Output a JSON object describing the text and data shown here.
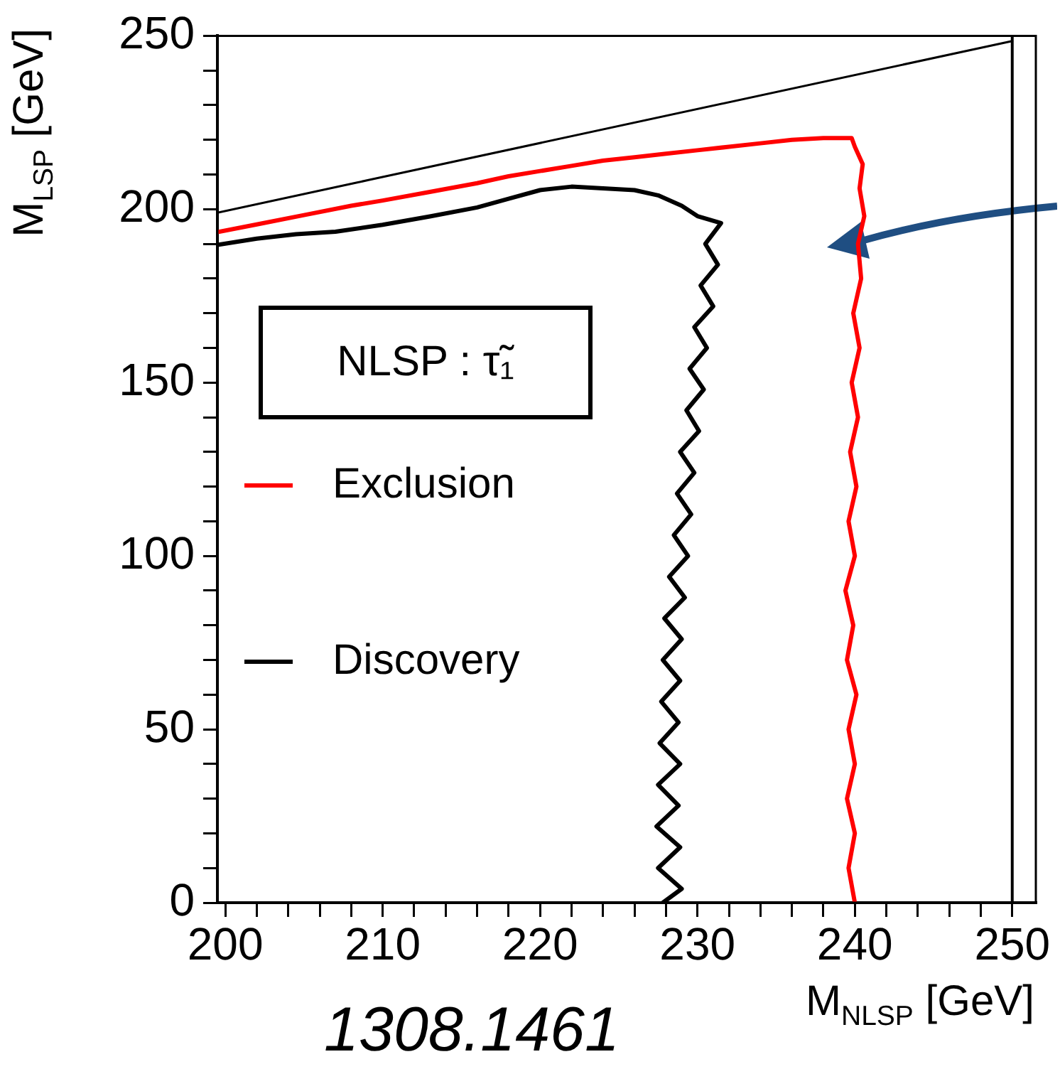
{
  "chart_data": {
    "type": "line",
    "xlabel": "M$_{NLSP}$ [GeV]",
    "ylabel": "M$_{LSP}$ [GeV]",
    "legend": "left",
    "grid": false,
    "marker": "none",
    "line_style": "solid",
    "xlim": [
      199.5,
      251.5
    ],
    "ylim": [
      0,
      250
    ],
    "xticks": [
      200,
      {
        "value": 202,
        "label": null
      },
      {
        "value": 204,
        "label": null
      },
      {
        "value": 206,
        "label": null
      },
      {
        "value": 208,
        "label": null
      },
      210,
      {
        "value": 212,
        "label": null
      },
      {
        "value": 214,
        "label": null
      },
      {
        "value": 216,
        "label": null
      },
      {
        "value": 218,
        "label": null
      },
      220,
      {
        "value": 222,
        "label": null
      },
      {
        "value": 224,
        "label": null
      },
      {
        "value": 226,
        "label": null
      },
      {
        "value": 228,
        "label": null
      },
      230,
      {
        "value": 232,
        "label": null
      },
      {
        "value": 234,
        "label": null
      },
      {
        "value": 236,
        "label": null
      },
      {
        "value": 238,
        "label": null
      },
      240,
      {
        "value": 242,
        "label": null
      },
      {
        "value": 244,
        "label": null
      },
      {
        "value": 246,
        "label": null
      },
      {
        "value": 248,
        "label": null
      },
      250
    ],
    "yticks": [
      0,
      {
        "value": 10,
        "label": null
      },
      {
        "value": 20,
        "label": null
      },
      {
        "value": 30,
        "label": null
      },
      {
        "value": 40,
        "label": null
      },
      50,
      {
        "value": 60,
        "label": null
      },
      {
        "value": 70,
        "label": null
      },
      {
        "value": 80,
        "label": null
      },
      {
        "value": 90,
        "label": null
      },
      100,
      {
        "value": 110,
        "label": null
      },
      {
        "value": 120,
        "label": null
      },
      {
        "value": 130,
        "label": null
      },
      {
        "value": 140,
        "label": null
      },
      150,
      {
        "value": 160,
        "label": null
      },
      {
        "value": 170,
        "label": null
      },
      {
        "value": 180,
        "label": null
      },
      {
        "value": 190,
        "label": null
      },
      200,
      {
        "value": 210,
        "label": null
      },
      {
        "value": 220,
        "label": null
      },
      {
        "value": 230,
        "label": null
      },
      {
        "value": 240,
        "label": null
      },
      250
    ],
    "series": [
      {
        "color": "#000000",
        "x": [
          199.5,
          250
        ],
        "values": [
          199,
          248.5
        ]
      },
      {
        "name": "Exclusion",
        "color": "#ff0000",
        "x": [
          199.5,
          202,
          205,
          208,
          210,
          213,
          216,
          218,
          220,
          222,
          224,
          226,
          228,
          230,
          232,
          234,
          236,
          238,
          239.8,
          240,
          240.5,
          240.3,
          240.6,
          240.2,
          240.4,
          239.9,
          240.3,
          239.8,
          240.2,
          239.7,
          240.1,
          239.6,
          240,
          239.4,
          239.9,
          239.5,
          240.1,
          239.6,
          240,
          239.5,
          240,
          239.6,
          240
        ],
        "values": [
          193.4,
          195.6,
          198.3,
          201,
          202.5,
          205,
          207.5,
          209.5,
          211,
          212.5,
          214,
          215,
          216,
          217,
          218,
          219,
          220,
          220.5,
          220.5,
          218,
          213,
          206,
          198,
          190,
          180,
          170,
          160,
          150,
          140,
          130,
          120,
          110,
          100,
          90,
          80,
          70,
          60,
          50,
          40,
          30,
          20,
          10,
          0
        ]
      },
      {
        "name": "Discovery",
        "color": "#000000",
        "x": [
          199.5,
          202,
          204.5,
          207,
          210,
          213,
          216,
          218,
          220,
          222,
          224,
          226,
          227.5,
          229,
          230,
          231.5,
          230.5,
          231.3,
          230.2,
          231,
          229.8,
          230.6,
          229.5,
          230.4,
          229.3,
          230.1,
          228.9,
          229.8,
          228.7,
          229.6,
          228.5,
          229.4,
          228.2,
          229.2,
          227.9,
          229,
          227.8,
          228.9,
          227.7,
          228.8,
          227.6,
          228.9,
          227.5,
          228.8,
          227.4,
          228.9,
          227.5,
          229,
          227.8
        ],
        "values": [
          189.7,
          191.5,
          192.8,
          193.5,
          195.5,
          197.9,
          200.5,
          203,
          205.5,
          206.5,
          206,
          205.5,
          204,
          201,
          198,
          196,
          190,
          184,
          178,
          172,
          166,
          160,
          154,
          148,
          142,
          136,
          130,
          124,
          118,
          112,
          106,
          100,
          94,
          88,
          82,
          76,
          70,
          64,
          58,
          52,
          46,
          40,
          34,
          28,
          22,
          16,
          10,
          4,
          0
        ]
      }
    ],
    "ref_lines": [
      {
        "axis": "x",
        "value": 250,
        "color": "#000000"
      }
    ],
    "annotations": [
      "NLSP : τ̃₁",
      "1308.1461"
    ]
  }
}
